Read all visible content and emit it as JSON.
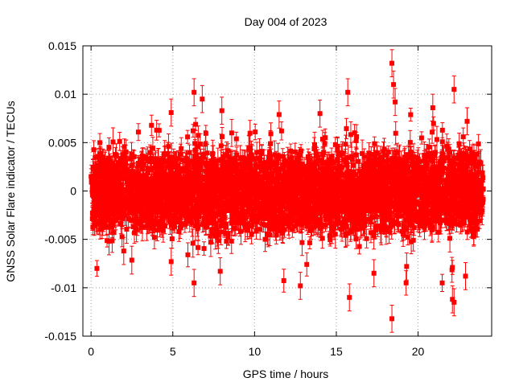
{
  "chart_data": {
    "type": "scatter",
    "title": "Day 004 of 2023",
    "xlabel": "GPS time / hours",
    "ylabel": "GNSS Solar Flare indicator / TECUs",
    "xlim": [
      -0.5,
      24.5
    ],
    "ylim": [
      -0.015,
      0.015
    ],
    "xticks": [
      0,
      5,
      10,
      15,
      20
    ],
    "xtick_labels": [
      "0",
      "5",
      "10",
      "15",
      "20"
    ],
    "yticks": [
      -0.015,
      -0.01,
      -0.005,
      0,
      0.005,
      0.01,
      0.015
    ],
    "ytick_labels": [
      "-0.015",
      "-0.01",
      "-0.005",
      "0",
      "0.005",
      "0.01",
      "0.015"
    ],
    "grid": true,
    "legend": "none",
    "series_color": "#ff0000",
    "marker": "square with error bars",
    "dense_band": {
      "x_range": [
        0,
        24
      ],
      "typical_y_range": [
        -0.004,
        0.004
      ]
    },
    "notable_points": [
      {
        "x": 18.4,
        "y": 0.0132
      },
      {
        "x": 18.4,
        "y": -0.0132
      },
      {
        "x": 18.5,
        "y": 0.011
      },
      {
        "x": 18.6,
        "y": 0.0092
      },
      {
        "x": 22.2,
        "y": 0.0105
      },
      {
        "x": 22.2,
        "y": -0.0115
      },
      {
        "x": 22.1,
        "y": -0.0112
      },
      {
        "x": 15.7,
        "y": 0.0102
      },
      {
        "x": 15.8,
        "y": -0.011
      },
      {
        "x": 6.3,
        "y": 0.0102
      },
      {
        "x": 6.8,
        "y": 0.0095
      },
      {
        "x": 6.3,
        "y": -0.0095
      },
      {
        "x": 7.9,
        "y": -0.0083
      },
      {
        "x": 8.0,
        "y": 0.0083
      },
      {
        "x": 4.9,
        "y": 0.0081
      },
      {
        "x": 4.9,
        "y": -0.0073
      },
      {
        "x": 12.8,
        "y": -0.0098
      },
      {
        "x": 11.5,
        "y": 0.0079
      },
      {
        "x": 17.3,
        "y": -0.0085
      },
      {
        "x": 22.9,
        "y": -0.0088
      },
      {
        "x": 20.9,
        "y": 0.0086
      },
      {
        "x": 23.0,
        "y": 0.0072
      },
      {
        "x": 14.0,
        "y": 0.008
      },
      {
        "x": 2.0,
        "y": -0.0062
      },
      {
        "x": 1.1,
        "y": -0.0052
      },
      {
        "x": 8.6,
        "y": 0.006
      },
      {
        "x": 19.3,
        "y": -0.0078
      }
    ]
  }
}
